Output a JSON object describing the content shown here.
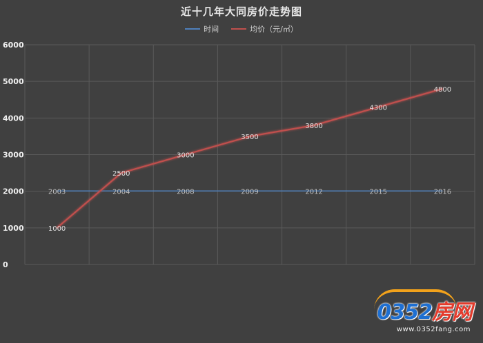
{
  "chart_data": {
    "type": "line",
    "title": "近十几年大同房价走势图",
    "categories": [
      "2003",
      "2004",
      "2008",
      "2009",
      "2012",
      "2015",
      "2016"
    ],
    "series": [
      {
        "name": "时间",
        "values": [
          2003,
          2004,
          2008,
          2009,
          2012,
          2015,
          2016
        ],
        "color": "#4f81bd"
      },
      {
        "name": "均价（元/㎡）",
        "values": [
          1000,
          2500,
          3000,
          3500,
          3800,
          4300,
          4800
        ],
        "color": "#c0504d"
      }
    ],
    "yticks": [
      "0",
      "1000",
      "2000",
      "3000",
      "4000",
      "5000",
      "6000"
    ],
    "ylim": [
      0,
      6000
    ],
    "grid": true,
    "legend_position": "top-center"
  },
  "watermark": {
    "brand_num": "0352",
    "brand_cn": "房网",
    "url": "www.0352fang.com"
  },
  "colors": {
    "background": "#404040",
    "grid": "#5a5a5a",
    "text": "#e6e6e6"
  }
}
